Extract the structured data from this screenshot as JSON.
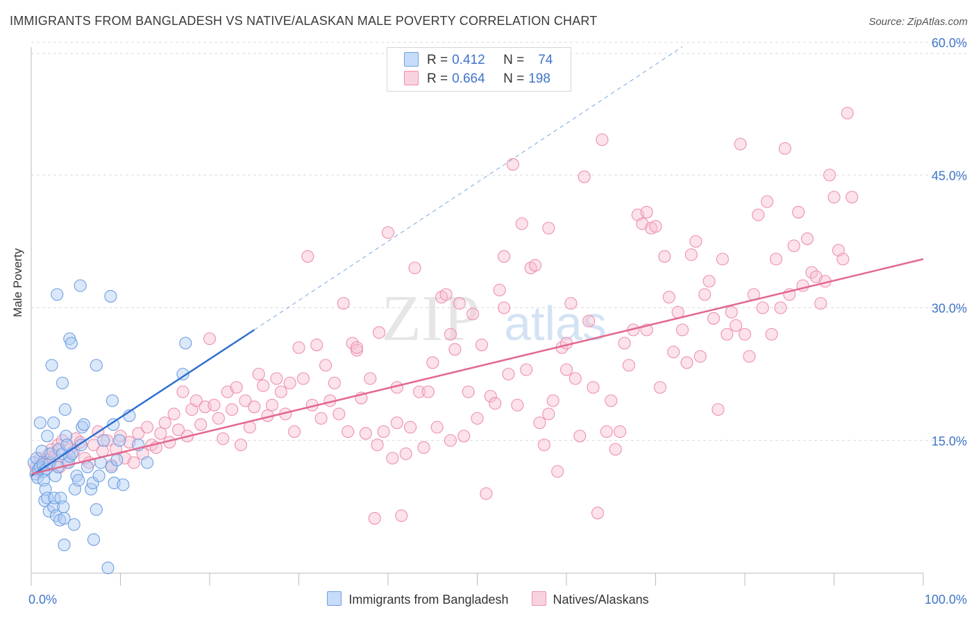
{
  "title": "IMMIGRANTS FROM BANGLADESH VS NATIVE/ALASKAN MALE POVERTY CORRELATION CHART",
  "source": "Source: ZipAtlas.com",
  "watermark": {
    "zip": "ZIP",
    "atlas": "atlas"
  },
  "legend_top": {
    "rows": [
      {
        "r_label": "R =",
        "r_value": "0.412",
        "n_label": "N =",
        "n_value": "74",
        "color": "#aecbf5"
      },
      {
        "r_label": "R =",
        "r_value": "0.664",
        "n_label": "N =",
        "n_value": "198",
        "color": "#f7bfd2"
      }
    ]
  },
  "colors": {
    "blue_fill": "#aecbf5",
    "blue_stroke": "#6f9ee0",
    "blue_line": "#2f6fd1",
    "pink_fill": "#f7bfd2",
    "pink_stroke": "#ee8fae",
    "pink_line": "#e2688f",
    "axis_text": "#3f74c9",
    "grid": "#d9d9d9"
  },
  "chart_data": {
    "type": "scatter",
    "title": "IMMIGRANTS FROM BANGLADESH VS NATIVE/ALASKAN MALE POVERTY CORRELATION CHART",
    "xlabel": "",
    "ylabel": "Male Poverty",
    "xlim": [
      0,
      100
    ],
    "ylim": [
      0,
      64
    ],
    "x_tick_labels": [
      "0.0%",
      "100.0%"
    ],
    "y_ticks": [
      15,
      30,
      45,
      60
    ],
    "y_tick_labels": [
      "15.0%",
      "30.0%",
      "45.0%",
      "60.0%"
    ],
    "grid": true,
    "series": [
      {
        "name": "Immigrants from Bangladesh",
        "color": "#aecbf5",
        "r": 0.412,
        "n": 74,
        "trend": {
          "x0": 0,
          "y0": 11,
          "x1": 25,
          "y1": 27.5,
          "dash_to_x": 73,
          "dash_to_y": 59.5
        },
        "points": [
          [
            0.3,
            12.5
          ],
          [
            0.5,
            11.2
          ],
          [
            0.6,
            13.0
          ],
          [
            0.7,
            10.8
          ],
          [
            0.8,
            11.8
          ],
          [
            1.0,
            17.0
          ],
          [
            1.0,
            12.0
          ],
          [
            1.2,
            13.8
          ],
          [
            1.3,
            12.3
          ],
          [
            1.4,
            11.5
          ],
          [
            1.4,
            10.5
          ],
          [
            1.5,
            8.2
          ],
          [
            1.6,
            9.5
          ],
          [
            1.7,
            11.8
          ],
          [
            1.8,
            15.5
          ],
          [
            1.8,
            8.5
          ],
          [
            2.0,
            7.0
          ],
          [
            2.1,
            12.5
          ],
          [
            2.2,
            13.5
          ],
          [
            2.3,
            23.5
          ],
          [
            2.5,
            7.5
          ],
          [
            2.5,
            17.0
          ],
          [
            2.6,
            8.5
          ],
          [
            2.7,
            11.0
          ],
          [
            2.8,
            6.5
          ],
          [
            2.9,
            31.5
          ],
          [
            3.0,
            12.0
          ],
          [
            3.1,
            14.0
          ],
          [
            3.2,
            6.0
          ],
          [
            3.3,
            8.5
          ],
          [
            3.5,
            21.5
          ],
          [
            3.5,
            13.5
          ],
          [
            3.6,
            7.5
          ],
          [
            3.7,
            6.2
          ],
          [
            3.7,
            3.2
          ],
          [
            3.8,
            18.5
          ],
          [
            3.9,
            15.5
          ],
          [
            4.0,
            14.5
          ],
          [
            4.2,
            12.5
          ],
          [
            4.3,
            13.2
          ],
          [
            4.3,
            26.5
          ],
          [
            4.5,
            26.0
          ],
          [
            4.6,
            13.5
          ],
          [
            4.8,
            5.5
          ],
          [
            4.9,
            9.5
          ],
          [
            5.1,
            11.0
          ],
          [
            5.3,
            10.5
          ],
          [
            5.5,
            32.5
          ],
          [
            5.6,
            14.5
          ],
          [
            5.7,
            16.5
          ],
          [
            5.9,
            16.8
          ],
          [
            6.3,
            12.0
          ],
          [
            6.7,
            9.5
          ],
          [
            6.9,
            10.2
          ],
          [
            7.0,
            3.8
          ],
          [
            7.3,
            23.5
          ],
          [
            7.3,
            7.2
          ],
          [
            7.6,
            11.0
          ],
          [
            7.8,
            12.5
          ],
          [
            8.1,
            15.0
          ],
          [
            8.6,
            0.6
          ],
          [
            8.9,
            31.3
          ],
          [
            9.0,
            12.0
          ],
          [
            9.1,
            19.5
          ],
          [
            9.2,
            16.8
          ],
          [
            9.3,
            10.2
          ],
          [
            9.6,
            12.8
          ],
          [
            9.9,
            15.0
          ],
          [
            10.3,
            10.0
          ],
          [
            11.0,
            17.8
          ],
          [
            12.0,
            14.5
          ],
          [
            13.0,
            12.5
          ],
          [
            17.0,
            22.5
          ],
          [
            17.3,
            26.0
          ]
        ]
      },
      {
        "name": "Natives/Alaskans",
        "color": "#f7bfd2",
        "r": 0.664,
        "n": 198,
        "trend": {
          "x0": 0,
          "y0": 11.2,
          "x1": 100,
          "y1": 35.5
        },
        "points": [
          [
            0.5,
            12.0
          ],
          [
            0.8,
            11.5
          ],
          [
            1.0,
            13.0
          ],
          [
            1.3,
            12.5
          ],
          [
            1.5,
            12.8
          ],
          [
            1.8,
            12.2
          ],
          [
            2.0,
            13.5
          ],
          [
            2.3,
            14.0
          ],
          [
            2.6,
            13.2
          ],
          [
            3.0,
            14.5
          ],
          [
            3.2,
            12.0
          ],
          [
            3.5,
            15.0
          ],
          [
            4.0,
            12.5
          ],
          [
            4.3,
            14.0
          ],
          [
            4.8,
            13.8
          ],
          [
            5.0,
            15.2
          ],
          [
            5.5,
            14.8
          ],
          [
            6.0,
            13.0
          ],
          [
            6.5,
            12.5
          ],
          [
            7.0,
            14.5
          ],
          [
            7.5,
            16.0
          ],
          [
            8.0,
            13.8
          ],
          [
            8.5,
            15.0
          ],
          [
            9.0,
            12.2
          ],
          [
            9.5,
            14.0
          ],
          [
            10.0,
            15.5
          ],
          [
            10.5,
            13.0
          ],
          [
            11.0,
            14.8
          ],
          [
            11.5,
            12.5
          ],
          [
            12.0,
            15.8
          ],
          [
            12.5,
            13.5
          ],
          [
            13.0,
            16.5
          ],
          [
            13.5,
            14.5
          ],
          [
            14.0,
            14.2
          ],
          [
            14.5,
            15.8
          ],
          [
            15.0,
            17.0
          ],
          [
            15.5,
            14.8
          ],
          [
            16.0,
            18.0
          ],
          [
            16.5,
            16.2
          ],
          [
            17.0,
            20.5
          ],
          [
            17.5,
            15.5
          ],
          [
            18.0,
            18.5
          ],
          [
            18.5,
            19.5
          ],
          [
            19.0,
            16.8
          ],
          [
            19.5,
            18.8
          ],
          [
            20.0,
            26.5
          ],
          [
            20.5,
            19.0
          ],
          [
            21.0,
            17.5
          ],
          [
            21.5,
            15.2
          ],
          [
            22.0,
            20.5
          ],
          [
            22.5,
            18.5
          ],
          [
            23.0,
            21.0
          ],
          [
            23.5,
            14.5
          ],
          [
            24.0,
            19.5
          ],
          [
            24.5,
            16.5
          ],
          [
            25.0,
            18.8
          ],
          [
            25.5,
            22.5
          ],
          [
            26.0,
            21.2
          ],
          [
            26.5,
            17.8
          ],
          [
            27.0,
            19.0
          ],
          [
            27.5,
            22.0
          ],
          [
            28.0,
            20.5
          ],
          [
            28.5,
            18.0
          ],
          [
            29.0,
            21.5
          ],
          [
            29.5,
            16.0
          ],
          [
            30.0,
            25.5
          ],
          [
            30.5,
            22.0
          ],
          [
            31.0,
            35.8
          ],
          [
            31.5,
            19.0
          ],
          [
            32.0,
            25.8
          ],
          [
            32.5,
            17.5
          ],
          [
            33.0,
            23.5
          ],
          [
            33.5,
            19.5
          ],
          [
            34.0,
            21.5
          ],
          [
            34.5,
            18.0
          ],
          [
            35.0,
            30.5
          ],
          [
            35.5,
            16.0
          ],
          [
            36.0,
            26.0
          ],
          [
            36.5,
            25.2
          ],
          [
            37.0,
            19.8
          ],
          [
            37.5,
            15.8
          ],
          [
            38.0,
            22.0
          ],
          [
            38.5,
            6.2
          ],
          [
            38.8,
            14.5
          ],
          [
            39.0,
            27.2
          ],
          [
            39.5,
            16.0
          ],
          [
            40.0,
            38.5
          ],
          [
            40.5,
            13.0
          ],
          [
            41.0,
            21.0
          ],
          [
            41.5,
            6.5
          ],
          [
            42.0,
            13.5
          ],
          [
            42.5,
            16.5
          ],
          [
            43.0,
            34.5
          ],
          [
            43.5,
            20.5
          ],
          [
            44.0,
            14.2
          ],
          [
            44.5,
            20.5
          ],
          [
            45.0,
            23.8
          ],
          [
            45.5,
            16.5
          ],
          [
            46.0,
            31.2
          ],
          [
            46.5,
            31.5
          ],
          [
            47.0,
            15.0
          ],
          [
            47.5,
            25.3
          ],
          [
            48.0,
            30.5
          ],
          [
            48.5,
            15.5
          ],
          [
            49.0,
            20.5
          ],
          [
            49.5,
            29.3
          ],
          [
            50.0,
            17.5
          ],
          [
            50.5,
            25.8
          ],
          [
            51.0,
            9.0
          ],
          [
            51.5,
            20.0
          ],
          [
            52.0,
            19.2
          ],
          [
            52.5,
            32.0
          ],
          [
            53.0,
            35.8
          ],
          [
            53.5,
            22.5
          ],
          [
            54.0,
            46.2
          ],
          [
            54.5,
            19.0
          ],
          [
            55.0,
            39.5
          ],
          [
            55.5,
            23.0
          ],
          [
            56.0,
            34.5
          ],
          [
            56.5,
            34.8
          ],
          [
            57.0,
            17.0
          ],
          [
            57.5,
            14.5
          ],
          [
            58.0,
            39.0
          ],
          [
            58.5,
            19.5
          ],
          [
            59.0,
            11.5
          ],
          [
            59.5,
            25.5
          ],
          [
            60.0,
            26.0
          ],
          [
            60.5,
            30.5
          ],
          [
            61.0,
            22.0
          ],
          [
            61.5,
            15.5
          ],
          [
            62.0,
            44.8
          ],
          [
            62.5,
            28.5
          ],
          [
            63.0,
            21.0
          ],
          [
            63.5,
            6.8
          ],
          [
            64.0,
            49.0
          ],
          [
            64.5,
            16.0
          ],
          [
            65.0,
            19.5
          ],
          [
            65.5,
            14.0
          ],
          [
            66.0,
            16.0
          ],
          [
            66.5,
            26.0
          ],
          [
            67.0,
            23.5
          ],
          [
            67.5,
            27.5
          ],
          [
            68.0,
            40.5
          ],
          [
            68.5,
            39.5
          ],
          [
            69.0,
            40.8
          ],
          [
            69.5,
            39.0
          ],
          [
            70.0,
            39.2
          ],
          [
            70.5,
            21.0
          ],
          [
            71.0,
            35.8
          ],
          [
            71.5,
            31.2
          ],
          [
            72.0,
            25.0
          ],
          [
            72.5,
            29.5
          ],
          [
            73.0,
            27.5
          ],
          [
            73.5,
            23.8
          ],
          [
            74.0,
            36.0
          ],
          [
            74.5,
            37.5
          ],
          [
            75.0,
            24.5
          ],
          [
            75.5,
            31.5
          ],
          [
            76.0,
            33.0
          ],
          [
            76.5,
            28.8
          ],
          [
            77.0,
            18.5
          ],
          [
            77.5,
            35.5
          ],
          [
            78.0,
            27.0
          ],
          [
            78.5,
            29.5
          ],
          [
            79.0,
            28.0
          ],
          [
            79.5,
            48.5
          ],
          [
            80.0,
            27.0
          ],
          [
            80.5,
            24.5
          ],
          [
            81.0,
            31.5
          ],
          [
            81.5,
            40.5
          ],
          [
            82.0,
            30.0
          ],
          [
            82.5,
            42.0
          ],
          [
            83.0,
            27.0
          ],
          [
            83.5,
            35.5
          ],
          [
            84.0,
            30.0
          ],
          [
            84.5,
            48.0
          ],
          [
            85.0,
            31.5
          ],
          [
            85.5,
            37.0
          ],
          [
            86.0,
            40.8
          ],
          [
            86.5,
            32.5
          ],
          [
            87.0,
            37.8
          ],
          [
            87.5,
            34.0
          ],
          [
            88.0,
            33.5
          ],
          [
            88.5,
            30.5
          ],
          [
            89.0,
            33.0
          ],
          [
            89.5,
            45.0
          ],
          [
            90.0,
            42.5
          ],
          [
            90.5,
            36.5
          ],
          [
            91.0,
            35.5
          ],
          [
            91.5,
            52.0
          ],
          [
            92.0,
            42.5
          ],
          [
            36.5,
            25.5
          ],
          [
            60.0,
            23.0
          ],
          [
            69.0,
            27.5
          ],
          [
            47.0,
            27.0
          ],
          [
            41.0,
            17.0
          ],
          [
            53.0,
            30.0
          ],
          [
            58.0,
            18.0
          ]
        ]
      }
    ]
  },
  "legend_bottom": [
    {
      "label": "Immigrants from Bangladesh",
      "color": "#aecbf5"
    },
    {
      "label": "Natives/Alaskans",
      "color": "#f7bfd2"
    }
  ]
}
